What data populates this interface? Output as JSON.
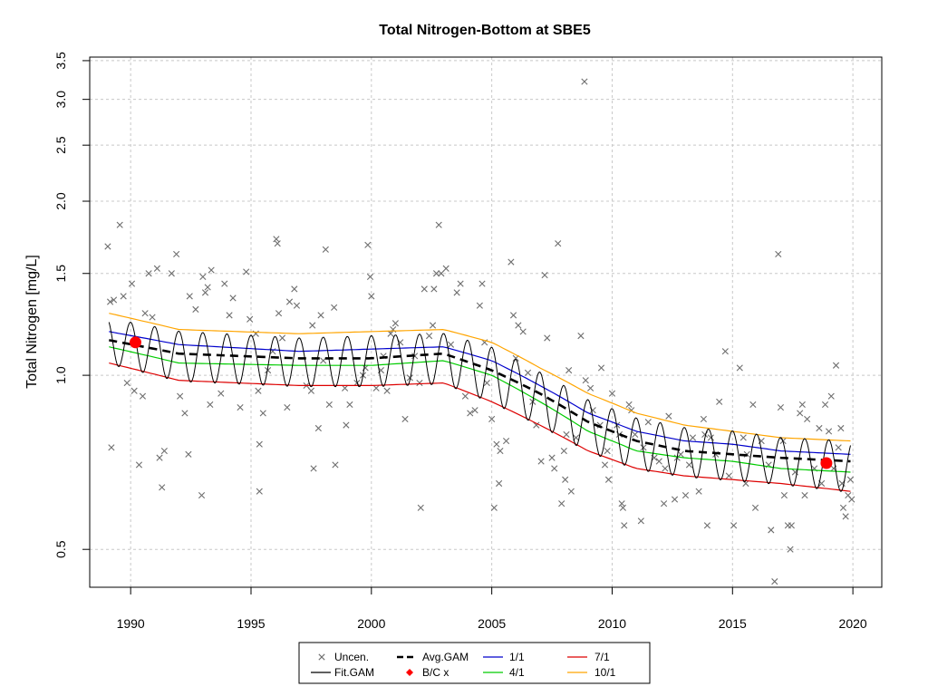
{
  "chart_data": {
    "type": "line",
    "title": "Total Nitrogen-Bottom at SBE5",
    "xlabel": "",
    "ylabel": "Total Nitrogen [mg/L]",
    "y_scale": "log",
    "xlim": [
      1988.3,
      2021.2
    ],
    "ylim": [
      0.43,
      3.55
    ],
    "x_ticks": [
      1990,
      1995,
      2000,
      2005,
      2010,
      2015,
      2020
    ],
    "y_ticks": [
      0.5,
      1.0,
      1.5,
      2.0,
      2.5,
      3.0,
      3.5
    ],
    "y_tick_labels": [
      "0.5",
      "1.0",
      "1.5",
      "2.0",
      "2.5",
      "3.0",
      "3.5"
    ],
    "grid": true,
    "legend_position": "bottom",
    "legend": [
      {
        "label": "Uncen.",
        "symbol": "x",
        "color": "#6e6e6e"
      },
      {
        "label": "Fit.GAM",
        "symbol": "line",
        "color": "#000000"
      },
      {
        "label": "Avg.GAM",
        "symbol": "dashed",
        "color": "#000000"
      },
      {
        "label": "B/C x",
        "symbol": "dot",
        "color": "#ff0000"
      },
      {
        "label": "1/1",
        "symbol": "line",
        "color": "#0000cc"
      },
      {
        "label": "4/1",
        "symbol": "line",
        "color": "#00cc00"
      },
      {
        "label": "7/1",
        "symbol": "line",
        "color": "#dd0000"
      },
      {
        "label": "10/1",
        "symbol": "line",
        "color": "#ffa500"
      }
    ],
    "seasonal_curves": [
      {
        "name": "1/1",
        "color": "#0000cc",
        "x": [
          1989.1,
          1992,
          1997,
          2000,
          2003,
          2005,
          2007,
          2009,
          2011,
          2013,
          2015,
          2017,
          2019.9
        ],
        "y": [
          1.19,
          1.13,
          1.1,
          1.11,
          1.12,
          1.06,
          0.96,
          0.86,
          0.8,
          0.77,
          0.76,
          0.74,
          0.73
        ]
      },
      {
        "name": "4/1",
        "color": "#00cc00",
        "x": [
          1989.1,
          1992,
          1997,
          2000,
          2003,
          2005,
          2007,
          2009,
          2011,
          2013,
          2015,
          2017,
          2019.9
        ],
        "y": [
          1.12,
          1.05,
          1.04,
          1.04,
          1.06,
          1.0,
          0.9,
          0.8,
          0.74,
          0.72,
          0.71,
          0.69,
          0.68
        ]
      },
      {
        "name": "7/1",
        "color": "#dd0000",
        "x": [
          1989.1,
          1992,
          1997,
          2000,
          2003,
          2005,
          2007,
          2009,
          2011,
          2013,
          2015,
          2017,
          2019.9
        ],
        "y": [
          1.05,
          0.98,
          0.96,
          0.96,
          0.97,
          0.9,
          0.82,
          0.74,
          0.69,
          0.67,
          0.66,
          0.65,
          0.63
        ]
      },
      {
        "name": "10/1",
        "color": "#ffa500",
        "x": [
          1989.1,
          1992,
          1997,
          2000,
          2003,
          2005,
          2007,
          2009,
          2011,
          2013,
          2015,
          2017,
          2019.9
        ],
        "y": [
          1.28,
          1.2,
          1.18,
          1.19,
          1.2,
          1.14,
          1.03,
          0.93,
          0.86,
          0.82,
          0.8,
          0.78,
          0.77
        ]
      }
    ],
    "avg_gam": {
      "name": "Avg.GAM",
      "color": "#000000",
      "x": [
        1989.1,
        1992,
        1997,
        2000,
        2003,
        2005,
        2007,
        2009,
        2011,
        2013,
        2015,
        2017,
        2019.9
      ],
      "y": [
        1.15,
        1.09,
        1.07,
        1.07,
        1.09,
        1.02,
        0.93,
        0.83,
        0.77,
        0.74,
        0.73,
        0.72,
        0.71
      ]
    },
    "fit_gam": {
      "name": "Fit.GAM",
      "color": "#000000",
      "x_start": 1989.1,
      "x_end": 2019.9,
      "peak_month": 1,
      "trough_month": 6
    },
    "bc_points": [
      {
        "x": 1990.2,
        "y": 1.14
      },
      {
        "x": 2018.9,
        "y": 0.705
      }
    ],
    "observations": [
      [
        1989.05,
        1.67
      ],
      [
        1989.15,
        1.34
      ],
      [
        1989.3,
        1.35
      ],
      [
        1989.2,
        0.75
      ],
      [
        1989.55,
        1.82
      ],
      [
        1989.7,
        1.37
      ],
      [
        1989.85,
        0.97
      ],
      [
        1990.05,
        1.44
      ],
      [
        1990.15,
        0.94
      ],
      [
        1990.35,
        0.7
      ],
      [
        1990.5,
        0.92
      ],
      [
        1990.6,
        1.28
      ],
      [
        1990.75,
        1.5
      ],
      [
        1990.9,
        1.26
      ],
      [
        1991.1,
        1.53
      ],
      [
        1991.2,
        0.72
      ],
      [
        1991.3,
        0.64
      ],
      [
        1991.4,
        0.74
      ],
      [
        1991.7,
        1.5
      ],
      [
        1991.9,
        1.62
      ],
      [
        1992.05,
        0.92
      ],
      [
        1992.25,
        0.86
      ],
      [
        1992.45,
        1.37
      ],
      [
        1992.4,
        0.73
      ],
      [
        1992.7,
        1.3
      ],
      [
        1992.95,
        0.62
      ],
      [
        1993.0,
        1.48
      ],
      [
        1993.1,
        1.39
      ],
      [
        1993.2,
        1.42
      ],
      [
        1993.3,
        0.89
      ],
      [
        1993.35,
        1.52
      ],
      [
        1993.75,
        0.93
      ],
      [
        1993.9,
        1.44
      ],
      [
        1994.1,
        1.27
      ],
      [
        1994.25,
        1.36
      ],
      [
        1994.55,
        0.88
      ],
      [
        1994.8,
        1.51
      ],
      [
        1994.95,
        1.25
      ],
      [
        1995.2,
        1.18
      ],
      [
        1995.3,
        0.94
      ],
      [
        1995.35,
        0.63
      ],
      [
        1995.35,
        0.76
      ],
      [
        1995.5,
        0.86
      ],
      [
        1995.7,
        1.02
      ],
      [
        1995.9,
        1.1
      ],
      [
        1996.05,
        1.72
      ],
      [
        1996.1,
        1.69
      ],
      [
        1996.15,
        1.28
      ],
      [
        1996.3,
        1.16
      ],
      [
        1996.5,
        0.88
      ],
      [
        1996.6,
        1.34
      ],
      [
        1996.8,
        1.41
      ],
      [
        1996.9,
        1.32
      ],
      [
        1997.3,
        0.96
      ],
      [
        1997.5,
        0.94
      ],
      [
        1997.55,
        1.22
      ],
      [
        1997.6,
        0.69
      ],
      [
        1997.8,
        0.81
      ],
      [
        1997.9,
        1.27
      ],
      [
        1998.0,
        1.06
      ],
      [
        1998.1,
        1.65
      ],
      [
        1998.25,
        0.89
      ],
      [
        1998.45,
        1.31
      ],
      [
        1998.5,
        0.7
      ],
      [
        1998.9,
        0.95
      ],
      [
        1998.95,
        0.82
      ],
      [
        1999.1,
        0.89
      ],
      [
        1999.4,
        0.97
      ],
      [
        1999.65,
        1.0
      ],
      [
        1999.75,
        1.03
      ],
      [
        1999.85,
        1.68
      ],
      [
        1999.95,
        1.48
      ],
      [
        2000.0,
        1.37
      ],
      [
        2000.2,
        0.95
      ],
      [
        2000.4,
        1.02
      ],
      [
        2000.5,
        1.08
      ],
      [
        2000.65,
        0.94
      ],
      [
        2000.8,
        1.18
      ],
      [
        2000.9,
        1.2
      ],
      [
        2001.0,
        1.23
      ],
      [
        2001.2,
        1.14
      ],
      [
        2001.4,
        0.84
      ],
      [
        2001.6,
        0.99
      ],
      [
        2001.8,
        1.08
      ],
      [
        2002.0,
        0.97
      ],
      [
        2002.05,
        0.59
      ],
      [
        2002.2,
        1.41
      ],
      [
        2002.4,
        1.17
      ],
      [
        2002.55,
        1.22
      ],
      [
        2002.6,
        1.41
      ],
      [
        2002.7,
        1.5
      ],
      [
        2002.8,
        1.82
      ],
      [
        2002.9,
        1.5
      ],
      [
        2003.1,
        1.53
      ],
      [
        2003.3,
        1.13
      ],
      [
        2003.55,
        1.39
      ],
      [
        2003.7,
        1.44
      ],
      [
        2003.9,
        0.92
      ],
      [
        2004.1,
        0.86
      ],
      [
        2004.3,
        0.87
      ],
      [
        2004.5,
        1.32
      ],
      [
        2004.6,
        1.44
      ],
      [
        2004.7,
        1.14
      ],
      [
        2004.8,
        0.97
      ],
      [
        2005.0,
        0.84
      ],
      [
        2005.1,
        0.59
      ],
      [
        2005.2,
        0.76
      ],
      [
        2005.3,
        0.65
      ],
      [
        2005.35,
        0.74
      ],
      [
        2005.6,
        0.77
      ],
      [
        2005.8,
        1.57
      ],
      [
        2005.9,
        1.27
      ],
      [
        2006.0,
        1.07
      ],
      [
        2006.1,
        1.22
      ],
      [
        2006.3,
        1.19
      ],
      [
        2006.5,
        1.01
      ],
      [
        2006.7,
        0.9
      ],
      [
        2006.85,
        0.82
      ],
      [
        2007.05,
        0.71
      ],
      [
        2007.2,
        1.49
      ],
      [
        2007.3,
        1.16
      ],
      [
        2007.5,
        0.72
      ],
      [
        2007.6,
        0.69
      ],
      [
        2007.75,
        1.69
      ],
      [
        2007.9,
        0.6
      ],
      [
        2008.0,
        0.74
      ],
      [
        2008.05,
        0.66
      ],
      [
        2008.1,
        0.79
      ],
      [
        2008.2,
        1.02
      ],
      [
        2008.3,
        0.63
      ],
      [
        2008.5,
        0.78
      ],
      [
        2008.7,
        1.17
      ],
      [
        2008.85,
        3.22
      ],
      [
        2008.9,
        0.98
      ],
      [
        2009.1,
        0.95
      ],
      [
        2009.2,
        0.87
      ],
      [
        2009.5,
        0.82
      ],
      [
        2009.55,
        1.03
      ],
      [
        2009.7,
        0.7
      ],
      [
        2009.8,
        0.74
      ],
      [
        2009.85,
        0.66
      ],
      [
        2010.0,
        0.93
      ],
      [
        2010.2,
        0.82
      ],
      [
        2010.3,
        0.79
      ],
      [
        2010.4,
        0.6
      ],
      [
        2010.45,
        0.59
      ],
      [
        2010.5,
        0.55
      ],
      [
        2010.7,
        0.89
      ],
      [
        2010.8,
        0.87
      ],
      [
        2010.95,
        0.79
      ],
      [
        2011.2,
        0.56
      ],
      [
        2011.3,
        0.75
      ],
      [
        2011.5,
        0.83
      ],
      [
        2011.75,
        0.72
      ],
      [
        2011.95,
        0.71
      ],
      [
        2012.15,
        0.6
      ],
      [
        2012.2,
        0.69
      ],
      [
        2012.35,
        0.85
      ],
      [
        2012.6,
        0.61
      ],
      [
        2012.7,
        0.72
      ],
      [
        2012.85,
        0.73
      ],
      [
        2013.05,
        0.62
      ],
      [
        2013.2,
        0.7
      ],
      [
        2013.35,
        0.78
      ],
      [
        2013.6,
        0.63
      ],
      [
        2013.8,
        0.84
      ],
      [
        2013.85,
        0.79
      ],
      [
        2013.95,
        0.55
      ],
      [
        2014.1,
        0.78
      ],
      [
        2014.3,
        0.73
      ],
      [
        2014.45,
        0.9
      ],
      [
        2014.7,
        1.1
      ],
      [
        2014.85,
        0.67
      ],
      [
        2015.05,
        0.55
      ],
      [
        2015.3,
        1.03
      ],
      [
        2015.45,
        0.78
      ],
      [
        2015.55,
        0.65
      ],
      [
        2015.6,
        0.73
      ],
      [
        2015.85,
        0.89
      ],
      [
        2015.95,
        0.59
      ],
      [
        2016.2,
        0.77
      ],
      [
        2016.5,
        0.7
      ],
      [
        2016.6,
        0.54
      ],
      [
        2016.75,
        0.44
      ],
      [
        2016.9,
        1.62
      ],
      [
        2017.0,
        0.88
      ],
      [
        2017.1,
        0.77
      ],
      [
        2017.15,
        0.62
      ],
      [
        2017.3,
        0.55
      ],
      [
        2017.4,
        0.5
      ],
      [
        2017.45,
        0.55
      ],
      [
        2017.6,
        0.68
      ],
      [
        2017.8,
        0.86
      ],
      [
        2017.9,
        0.89
      ],
      [
        2018.0,
        0.62
      ],
      [
        2018.1,
        0.84
      ],
      [
        2018.4,
        0.69
      ],
      [
        2018.6,
        0.81
      ],
      [
        2018.7,
        0.65
      ],
      [
        2018.85,
        0.89
      ],
      [
        2018.9,
        0.71
      ],
      [
        2019.0,
        0.8
      ],
      [
        2019.1,
        0.92
      ],
      [
        2019.2,
        0.69
      ],
      [
        2019.3,
        1.04
      ],
      [
        2019.4,
        0.75
      ],
      [
        2019.5,
        0.81
      ],
      [
        2019.55,
        0.65
      ],
      [
        2019.6,
        0.59
      ],
      [
        2019.7,
        0.57
      ],
      [
        2019.8,
        0.62
      ],
      [
        2019.9,
        0.66
      ],
      [
        2019.95,
        0.61
      ]
    ]
  }
}
